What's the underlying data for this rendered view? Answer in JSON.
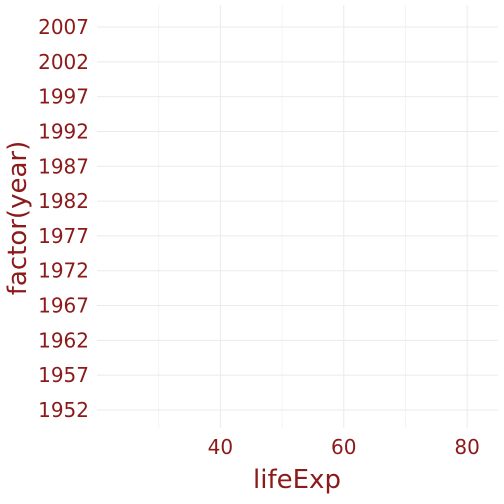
{
  "chart_data": {
    "type": "scatter",
    "title": "",
    "xlabel": "lifeExp",
    "ylabel": "factor(year)",
    "xlim": [
      20,
      85
    ],
    "x_ticks": [
      40,
      60,
      80
    ],
    "x_minor": [
      30,
      50,
      70
    ],
    "categories": [
      "1952",
      "1957",
      "1962",
      "1967",
      "1972",
      "1977",
      "1982",
      "1987",
      "1992",
      "1997",
      "2002",
      "2007"
    ],
    "series": [],
    "grid": true,
    "colors": {
      "text": "#8b1a1a",
      "grid_major": "#ebebeb",
      "grid_minor": "#f4f4f4",
      "background": "#ffffff"
    }
  }
}
